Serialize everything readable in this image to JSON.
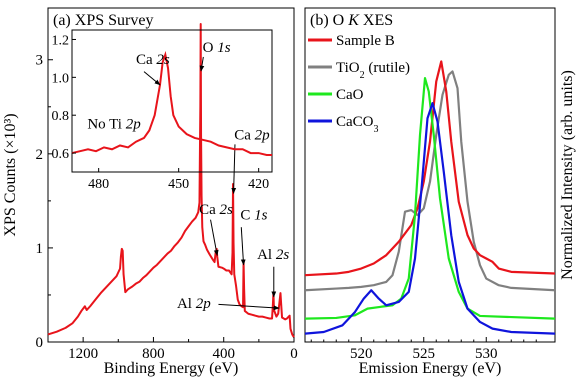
{
  "chart_data": [
    {
      "type": "line",
      "panel_label": "(a) XPS Survey",
      "xlabel": "Binding Energy (eV)",
      "ylabel": "XPS Counts (×10³)",
      "xlim": [
        1400,
        0
      ],
      "ylim": [
        0,
        3.55
      ],
      "x_ticks": [
        1200,
        800,
        400,
        0
      ],
      "y_ticks": [
        0,
        1,
        2,
        3
      ],
      "series": [
        {
          "color": "#e8141b",
          "points": [
            [
              1400,
              0.08
            ],
            [
              1350,
              0.11
            ],
            [
              1300,
              0.15
            ],
            [
              1260,
              0.2
            ],
            [
              1230,
              0.27
            ],
            [
              1210,
              0.33
            ],
            [
              1190,
              0.38
            ],
            [
              1180,
              0.34
            ],
            [
              1160,
              0.38
            ],
            [
              1130,
              0.45
            ],
            [
              1100,
              0.52
            ],
            [
              1070,
              0.58
            ],
            [
              1040,
              0.64
            ],
            [
              1010,
              0.7
            ],
            [
              1000,
              0.74
            ],
            [
              990,
              0.78
            ],
            [
              985,
              0.91
            ],
            [
              980,
              0.99
            ],
            [
              975,
              0.97
            ],
            [
              970,
              0.72
            ],
            [
              960,
              0.53
            ],
            [
              945,
              0.56
            ],
            [
              920,
              0.59
            ],
            [
              900,
              0.62
            ],
            [
              880,
              0.64
            ],
            [
              860,
              0.68
            ],
            [
              840,
              0.71
            ],
            [
              820,
              0.75
            ],
            [
              800,
              0.79
            ],
            [
              780,
              0.82
            ],
            [
              760,
              0.86
            ],
            [
              740,
              0.9
            ],
            [
              720,
              0.94
            ],
            [
              700,
              0.97
            ],
            [
              680,
              1.02
            ],
            [
              660,
              1.06
            ],
            [
              640,
              1.11
            ],
            [
              620,
              1.18
            ],
            [
              600,
              1.23
            ],
            [
              580,
              1.28
            ],
            [
              560,
              1.32
            ],
            [
              545,
              1.38
            ],
            [
              538,
              1.48
            ],
            [
              533,
              2.5
            ],
            [
              531,
              3.38
            ],
            [
              529,
              2.2
            ],
            [
              526,
              1.55
            ],
            [
              522,
              1.22
            ],
            [
              515,
              1.07
            ],
            [
              505,
              1.03
            ],
            [
              495,
              0.98
            ],
            [
              480,
              0.93
            ],
            [
              470,
              0.9
            ],
            [
              460,
              0.87
            ],
            [
              452,
              0.85
            ],
            [
              446,
              0.95
            ],
            [
              440,
              0.99
            ],
            [
              437,
              0.91
            ],
            [
              430,
              0.8
            ],
            [
              410,
              0.79
            ],
            [
              400,
              0.78
            ],
            [
              385,
              0.76
            ],
            [
              370,
              0.76
            ],
            [
              355,
              0.72
            ],
            [
              350,
              0.95
            ],
            [
              347,
              1.68
            ],
            [
              344,
              1.05
            ],
            [
              340,
              0.72
            ],
            [
              330,
              0.6
            ],
            [
              320,
              0.45
            ],
            [
              310,
              0.4
            ],
            [
              298,
              0.38
            ],
            [
              290,
              0.37
            ],
            [
              287,
              0.85
            ],
            [
              284,
              0.57
            ],
            [
              280,
              0.33
            ],
            [
              260,
              0.3
            ],
            [
              240,
              0.29
            ],
            [
              220,
              0.28
            ],
            [
              200,
              0.27
            ],
            [
              180,
              0.27
            ],
            [
              160,
              0.26
            ],
            [
              140,
              0.25
            ],
            [
              125,
              0.25
            ],
            [
              120,
              0.4
            ],
            [
              117,
              0.52
            ],
            [
              114,
              0.34
            ],
            [
              100,
              0.27
            ],
            [
              90,
              0.3
            ],
            [
              77,
              0.52
            ],
            [
              73,
              0.4
            ],
            [
              68,
              0.26
            ],
            [
              50,
              0.24
            ],
            [
              40,
              0.25
            ],
            [
              25,
              0.28
            ],
            [
              20,
              0.14
            ],
            [
              10,
              0.08
            ],
            [
              0,
              0.05
            ]
          ]
        }
      ],
      "annotations": [
        {
          "text": "O ",
          "italic": "1s",
          "x": 520,
          "y": 3.08
        },
        {
          "text": "Ca ",
          "italic": "2p",
          "x": 340,
          "y": 2.15
        },
        {
          "text": "Ca ",
          "italic": "2s",
          "x": 540,
          "y": 1.36
        },
        {
          "text": "C ",
          "italic": "1s",
          "x": 305,
          "y": 1.3
        },
        {
          "text": "Al ",
          "italic": "2s",
          "x": 210,
          "y": 0.88
        },
        {
          "text": "Al ",
          "italic": "2p",
          "x": 570,
          "y": 0.36
        }
      ],
      "inset": {
        "xlim": [
          490,
          415
        ],
        "ylim": [
          0.5,
          1.25
        ],
        "x_ticks": [
          480,
          450,
          420
        ],
        "y_ticks": [
          0.6,
          0.8,
          1.0,
          1.2
        ],
        "annotations": [
          {
            "text": "Ca ",
            "italic": "2s",
            "x": 466,
            "y": 1.07
          },
          {
            "text": "No Ti ",
            "italic": "2p",
            "x": 476,
            "y": 0.73
          }
        ],
        "points": [
          [
            490,
            0.6
          ],
          [
            487,
            0.61
          ],
          [
            484,
            0.62
          ],
          [
            481,
            0.61
          ],
          [
            478,
            0.63
          ],
          [
            475,
            0.62
          ],
          [
            472,
            0.64
          ],
          [
            469,
            0.63
          ],
          [
            466,
            0.66
          ],
          [
            463,
            0.68
          ],
          [
            461,
            0.72
          ],
          [
            459,
            0.8
          ],
          [
            457,
            0.96
          ],
          [
            456,
            1.08
          ],
          [
            455,
            1.12
          ],
          [
            454,
            1.05
          ],
          [
            453,
            0.9
          ],
          [
            452,
            0.8
          ],
          [
            450,
            0.74
          ],
          [
            447,
            0.7
          ],
          [
            444,
            0.68
          ],
          [
            441,
            0.67
          ],
          [
            438,
            0.66
          ],
          [
            435,
            0.64
          ],
          [
            432,
            0.63
          ],
          [
            429,
            0.62
          ],
          [
            426,
            0.62
          ],
          [
            423,
            0.6
          ],
          [
            420,
            0.6
          ],
          [
            417,
            0.59
          ],
          [
            415,
            0.59
          ]
        ]
      }
    },
    {
      "type": "line",
      "panel_label_prefix": "(b) O ",
      "panel_label_italic": "K",
      "panel_label_suffix": " XES",
      "xlabel": "Emission Energy (eV)",
      "ylabel": "Normalized Intensity (arb. units)",
      "xlim": [
        515.5,
        535.5
      ],
      "ylim": [
        0,
        1.0
      ],
      "x_ticks": [
        520,
        525,
        530
      ],
      "legend_position": "top-left",
      "legend_entries": [
        {
          "main": "Sample B",
          "color": "#e8141b"
        },
        {
          "main": "TiO",
          "sub": "2",
          "tail": " (rutile)",
          "color": "#808080"
        },
        {
          "main": "CaO",
          "color": "#1ee81e"
        },
        {
          "main": "CaCO",
          "sub": "3",
          "color": "#0f14dc"
        }
      ],
      "series": [
        {
          "color": "#808080",
          "points": [
            [
              515.5,
              0.155
            ],
            [
              518,
              0.16
            ],
            [
              519,
              0.162
            ],
            [
              520,
              0.165
            ],
            [
              521,
              0.17
            ],
            [
              522,
              0.18
            ],
            [
              522.5,
              0.2
            ],
            [
              523,
              0.27
            ],
            [
              523.5,
              0.39
            ],
            [
              524,
              0.395
            ],
            [
              524.5,
              0.38
            ],
            [
              525,
              0.4
            ],
            [
              525.5,
              0.48
            ],
            [
              526,
              0.62
            ],
            [
              526.5,
              0.74
            ],
            [
              527,
              0.8
            ],
            [
              527.3,
              0.81
            ],
            [
              527.7,
              0.76
            ],
            [
              528,
              0.6
            ],
            [
              528.5,
              0.42
            ],
            [
              529,
              0.3
            ],
            [
              529.5,
              0.23
            ],
            [
              530,
              0.19
            ],
            [
              531,
              0.17
            ],
            [
              532,
              0.162
            ],
            [
              535.5,
              0.155
            ]
          ]
        },
        {
          "color": "#e8141b",
          "points": [
            [
              515.5,
              0.2
            ],
            [
              518,
              0.205
            ],
            [
              519,
              0.21
            ],
            [
              520,
              0.22
            ],
            [
              521,
              0.235
            ],
            [
              522,
              0.26
            ],
            [
              523,
              0.3
            ],
            [
              524,
              0.35
            ],
            [
              524.5,
              0.4
            ],
            [
              525,
              0.48
            ],
            [
              525.5,
              0.6
            ],
            [
              526,
              0.78
            ],
            [
              526.4,
              0.84
            ],
            [
              526.8,
              0.75
            ],
            [
              527.2,
              0.6
            ],
            [
              527.8,
              0.42
            ],
            [
              528.5,
              0.32
            ],
            [
              529,
              0.28
            ],
            [
              529.5,
              0.26
            ],
            [
              530,
              0.25
            ],
            [
              530.5,
              0.24
            ],
            [
              531,
              0.22
            ],
            [
              532,
              0.21
            ],
            [
              535.5,
              0.205
            ]
          ]
        },
        {
          "color": "#1ee81e",
          "points": [
            [
              515.5,
              0.07
            ],
            [
              518,
              0.072
            ],
            [
              519.5,
              0.08
            ],
            [
              520.5,
              0.1
            ],
            [
              521.5,
              0.105
            ],
            [
              522.5,
              0.11
            ],
            [
              523.2,
              0.13
            ],
            [
              523.8,
              0.19
            ],
            [
              524.3,
              0.38
            ],
            [
              524.7,
              0.62
            ],
            [
              525.1,
              0.79
            ],
            [
              525.4,
              0.75
            ],
            [
              525.8,
              0.62
            ],
            [
              526.3,
              0.43
            ],
            [
              527,
              0.25
            ],
            [
              527.8,
              0.15
            ],
            [
              528.5,
              0.1
            ],
            [
              529.5,
              0.078
            ],
            [
              535.5,
              0.07
            ]
          ]
        },
        {
          "color": "#0f14dc",
          "points": [
            [
              515.5,
              0.025
            ],
            [
              517,
              0.03
            ],
            [
              518.5,
              0.05
            ],
            [
              519.5,
              0.09
            ],
            [
              520.2,
              0.13
            ],
            [
              520.8,
              0.155
            ],
            [
              521.4,
              0.13
            ],
            [
              522,
              0.11
            ],
            [
              523,
              0.12
            ],
            [
              523.8,
              0.15
            ],
            [
              524.3,
              0.25
            ],
            [
              524.8,
              0.45
            ],
            [
              525.3,
              0.67
            ],
            [
              525.7,
              0.715
            ],
            [
              526.1,
              0.66
            ],
            [
              526.6,
              0.51
            ],
            [
              527.2,
              0.32
            ],
            [
              527.8,
              0.18
            ],
            [
              528.5,
              0.1
            ],
            [
              529.5,
              0.06
            ],
            [
              530.5,
              0.04
            ],
            [
              532,
              0.03
            ],
            [
              535.5,
              0.025
            ]
          ]
        }
      ]
    }
  ]
}
